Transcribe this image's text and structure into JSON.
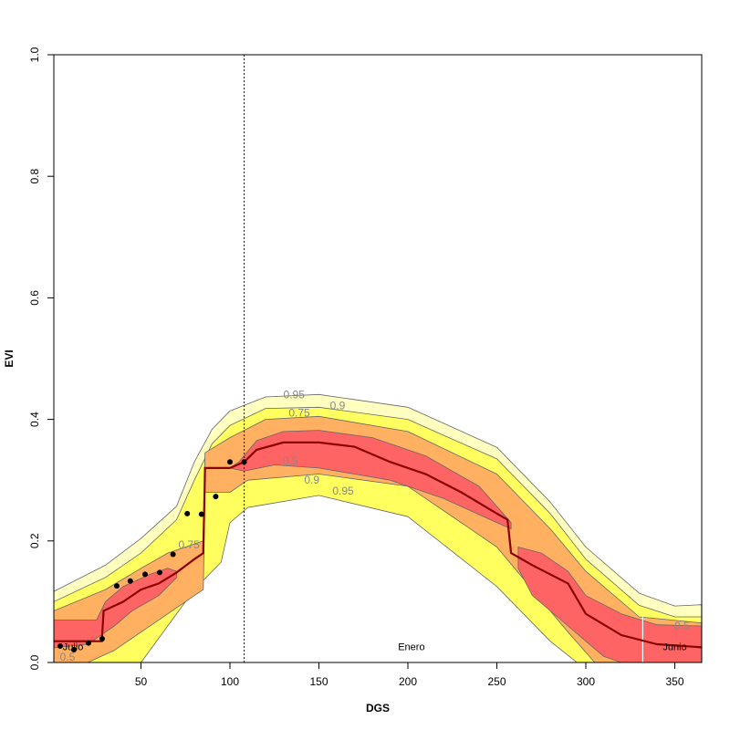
{
  "chart_data": {
    "type": "area",
    "title": "",
    "xlabel": "DGS",
    "ylabel": "EVI",
    "xlim": [
      1,
      365
    ],
    "ylim": [
      0,
      1
    ],
    "xticks": [
      50,
      100,
      150,
      200,
      250,
      300,
      350
    ],
    "yticks": [
      "0.0",
      "0.2",
      "0.4",
      "0.6",
      "0.8",
      "1.0"
    ],
    "colors": {
      "0.95": "#FFFFC0",
      "0.9": "#FFFF60",
      "0.75": "#FFB060",
      "0.5": "#FF6464",
      "median": "#8B0000",
      "vline": "#0000AA"
    },
    "bands": [
      {
        "level": "0.95",
        "segments": [
          {
            "upper": [
              [
                1,
                0.117
              ],
              [
                30,
                0.16
              ],
              [
                50,
                0.204
              ],
              [
                70,
                0.257
              ],
              [
                80,
                0.33
              ],
              [
                90,
                0.384
              ],
              [
                100,
                0.414
              ],
              [
                120,
                0.437
              ],
              [
                150,
                0.441
              ],
              [
                200,
                0.42
              ],
              [
                250,
                0.354
              ],
              [
                280,
                0.264
              ],
              [
                300,
                0.19
              ],
              [
                330,
                0.114
              ],
              [
                350,
                0.093
              ],
              [
                365,
                0.095
              ]
            ],
            "lower": [
              [
                1,
                0
              ],
              [
                40,
                0
              ],
              [
                60,
                0.07
              ],
              [
                80,
                0.144
              ],
              [
                95,
                0.19
              ],
              [
                100,
                0.25
              ],
              [
                110,
                0.27
              ],
              [
                130,
                0.285
              ],
              [
                150,
                0.29
              ],
              [
                180,
                0.28
              ],
              [
                200,
                0.257
              ],
              [
                230,
                0.2
              ],
              [
                250,
                0.144
              ],
              [
                270,
                0.085
              ],
              [
                290,
                0.02
              ],
              [
                300,
                0
              ],
              [
                365,
                0
              ]
            ]
          }
        ]
      },
      {
        "level": "0.9",
        "segments": [
          {
            "upper": [
              [
                1,
                0.1
              ],
              [
                30,
                0.14
              ],
              [
                50,
                0.18
              ],
              [
                70,
                0.235
              ],
              [
                80,
                0.3
              ],
              [
                90,
                0.36
              ],
              [
                100,
                0.39
              ],
              [
                120,
                0.418
              ],
              [
                150,
                0.42
              ],
              [
                200,
                0.4
              ],
              [
                250,
                0.335
              ],
              [
                280,
                0.245
              ],
              [
                300,
                0.17
              ],
              [
                330,
                0.094
              ],
              [
                350,
                0.075
              ],
              [
                365,
                0.075
              ]
            ],
            "lower": [
              [
                1,
                0
              ],
              [
                50,
                0
              ],
              [
                60,
                0.04
              ],
              [
                80,
                0.12
              ],
              [
                95,
                0.165
              ],
              [
                100,
                0.23
              ],
              [
                110,
                0.255
              ],
              [
                150,
                0.275
              ],
              [
                200,
                0.24
              ],
              [
                250,
                0.125
              ],
              [
                280,
                0.035
              ],
              [
                295,
                0
              ],
              [
                365,
                0
              ]
            ]
          }
        ]
      },
      {
        "level": "0.75",
        "segments": [
          {
            "upper": [
              [
                1,
                0.085
              ],
              [
                30,
                0.12
              ],
              [
                50,
                0.155
              ],
              [
                65,
                0.18
              ],
              [
                75,
                0.19
              ],
              [
                85,
                0.2
              ],
              [
                86,
                0.345
              ],
              [
                100,
                0.37
              ],
              [
                120,
                0.4
              ],
              [
                150,
                0.405
              ],
              [
                200,
                0.38
              ],
              [
                250,
                0.31
              ],
              [
                280,
                0.22
              ],
              [
                300,
                0.15
              ],
              [
                330,
                0.075
              ],
              [
                365,
                0.065
              ]
            ],
            "lower": [
              [
                1,
                0
              ],
              [
                20,
                0
              ],
              [
                35,
                0.02
              ],
              [
                60,
                0.07
              ],
              [
                80,
                0.11
              ],
              [
                85,
                0.12
              ],
              [
                86,
                0.28
              ],
              [
                100,
                0.28
              ],
              [
                110,
                0.3
              ],
              [
                150,
                0.31
              ],
              [
                200,
                0.29
              ],
              [
                250,
                0.19
              ],
              [
                270,
                0.12
              ],
              [
                290,
                0.05
              ],
              [
                305,
                0
              ],
              [
                365,
                0
              ]
            ]
          }
        ]
      },
      {
        "level": "0.5",
        "segments": [
          {
            "upper": [
              [
                1,
                0.07
              ],
              [
                25,
                0.07
              ],
              [
                30,
                0.1
              ],
              [
                40,
                0.125
              ],
              [
                55,
                0.145
              ],
              [
                65,
                0.155
              ],
              [
                70,
                0.15
              ]
            ],
            "lower": [
              [
                1,
                0.024
              ],
              [
                20,
                0.03
              ],
              [
                30,
                0.05
              ],
              [
                35,
                0.06
              ],
              [
                45,
                0.085
              ],
              [
                60,
                0.11
              ],
              [
                70,
                0.14
              ]
            ]
          },
          {
            "upper": [
              [
                100,
                0.32
              ],
              [
                105,
                0.33
              ],
              [
                115,
                0.365
              ],
              [
                130,
                0.38
              ],
              [
                150,
                0.382
              ],
              [
                180,
                0.37
              ],
              [
                210,
                0.34
              ],
              [
                240,
                0.29
              ],
              [
                255,
                0.24
              ],
              [
                258,
                0.23
              ]
            ],
            "lower": [
              [
                100,
                0.32
              ],
              [
                108,
                0.315
              ],
              [
                125,
                0.325
              ],
              [
                150,
                0.32
              ],
              [
                190,
                0.3
              ],
              [
                220,
                0.27
              ],
              [
                250,
                0.23
              ],
              [
                258,
                0.22
              ]
            ]
          },
          {
            "upper": [
              [
                262,
                0.19
              ],
              [
                275,
                0.18
              ],
              [
                290,
                0.15
              ],
              [
                300,
                0.11
              ],
              [
                320,
                0.08
              ],
              [
                340,
                0.062
              ],
              [
                365,
                0.06
              ]
            ],
            "lower": [
              [
                262,
                0.155
              ],
              [
                270,
                0.11
              ],
              [
                290,
                0.06
              ],
              [
                310,
                0.01
              ],
              [
                320,
                0
              ],
              [
                365,
                0
              ]
            ]
          }
        ]
      }
    ],
    "median": [
      [
        1,
        0.035
      ],
      [
        28,
        0.035
      ],
      [
        29,
        0.085
      ],
      [
        40,
        0.1
      ],
      [
        50,
        0.12
      ],
      [
        60,
        0.13
      ],
      [
        70,
        0.148
      ],
      [
        80,
        0.17
      ],
      [
        85,
        0.18
      ],
      [
        86,
        0.32
      ],
      [
        100,
        0.32
      ],
      [
        108,
        0.33
      ],
      [
        115,
        0.35
      ],
      [
        130,
        0.362
      ],
      [
        150,
        0.362
      ],
      [
        170,
        0.355
      ],
      [
        190,
        0.33
      ],
      [
        210,
        0.31
      ],
      [
        230,
        0.28
      ],
      [
        250,
        0.245
      ],
      [
        256,
        0.235
      ],
      [
        258,
        0.18
      ],
      [
        270,
        0.16
      ],
      [
        290,
        0.13
      ],
      [
        300,
        0.08
      ],
      [
        320,
        0.045
      ],
      [
        340,
        0.03
      ],
      [
        365,
        0.025
      ]
    ],
    "points": [
      [
        4.6,
        0.027
      ],
      [
        12.3,
        0.021
      ],
      [
        20.5,
        0.032
      ],
      [
        28.2,
        0.039
      ],
      [
        36.4,
        0.126
      ],
      [
        44,
        0.134
      ],
      [
        52.3,
        0.145
      ],
      [
        60.5,
        0.148
      ],
      [
        68,
        0.178
      ],
      [
        76,
        0.245
      ],
      [
        84,
        0.244
      ],
      [
        92,
        0.273
      ],
      [
        100,
        0.33
      ],
      [
        108,
        0.33
      ]
    ],
    "vline_dotted_x": 108,
    "vline_white_x": 332,
    "contour_labels": [
      {
        "text": "0.95",
        "x": 136,
        "y": 0.441
      },
      {
        "text": "0.9",
        "x": 160.5,
        "y": 0.423
      },
      {
        "text": "0.75",
        "x": 139,
        "y": 0.411
      },
      {
        "text": "0.5",
        "x": 134,
        "y": 0.332
      },
      {
        "text": "0.9",
        "x": 146,
        "y": 0.3
      },
      {
        "text": "0.95",
        "x": 163.6,
        "y": 0.282
      },
      {
        "text": "0.75",
        "x": 77,
        "y": 0.194
      },
      {
        "text": "0.5",
        "x": 8.7,
        "y": 0.009
      },
      {
        "text": "0.5",
        "x": 354,
        "y": 0.06
      }
    ],
    "month_labels": [
      {
        "text": "Julio",
        "x": 11.8,
        "y": 0.026
      },
      {
        "text": "Enero",
        "x": 202,
        "y": 0.026
      },
      {
        "text": "Junio",
        "x": 350,
        "y": 0.026
      }
    ]
  }
}
